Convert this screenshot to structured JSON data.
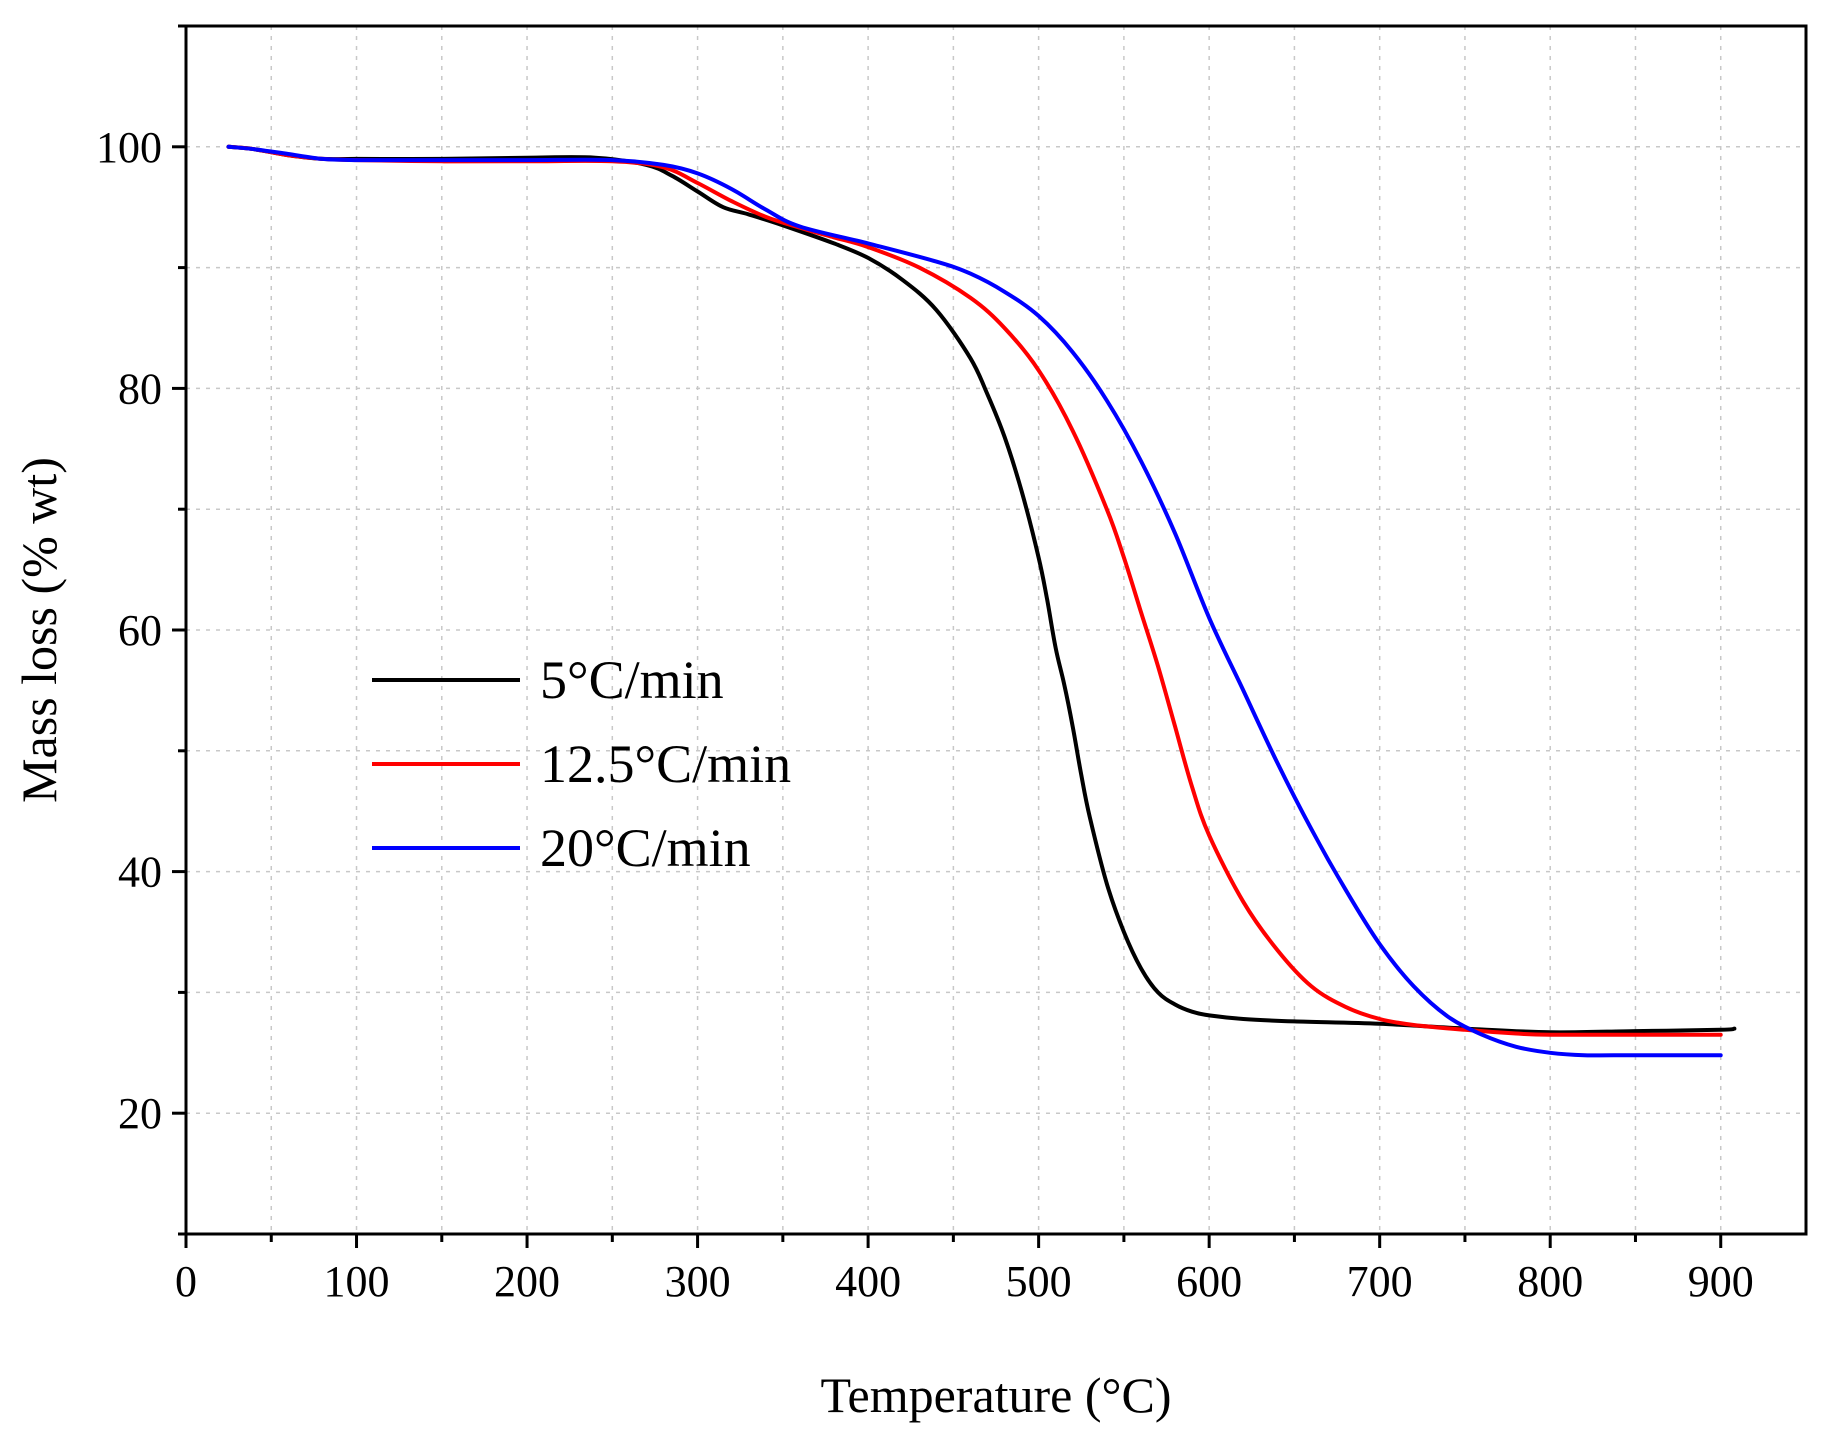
{
  "chart_data": {
    "type": "line",
    "title": "",
    "xlabel": "Temperature (°C)",
    "ylabel": "Mass loss (% wt)",
    "xlim": [
      0,
      950
    ],
    "ylim": [
      10,
      110
    ],
    "xticks": [
      0,
      100,
      200,
      300,
      400,
      500,
      600,
      700,
      800,
      900
    ],
    "xtick_labels": [
      "0",
      "100",
      "200",
      "300",
      "400",
      "500",
      "600",
      "700",
      "800",
      "900"
    ],
    "yticks": [
      20,
      40,
      60,
      80,
      100
    ],
    "ytick_labels": [
      "20",
      "40",
      "60",
      "80",
      "100"
    ],
    "grid": true,
    "legend_position": "center-left",
    "series": [
      {
        "name": "5°C/min",
        "color": "#000000",
        "x": [
          25,
          40,
          60,
          80,
          100,
          150,
          200,
          240,
          270,
          285,
          300,
          315,
          330,
          350,
          380,
          400,
          420,
          440,
          460,
          470,
          480,
          490,
          500,
          505,
          510,
          515,
          520,
          525,
          530,
          540,
          550,
          560,
          570,
          580,
          590,
          600,
          620,
          650,
          700,
          750,
          800,
          850,
          900,
          908
        ],
        "values": [
          100,
          99.8,
          99.3,
          99.0,
          99.0,
          99.0,
          99.1,
          99.1,
          98.5,
          97.6,
          96.3,
          95.0,
          94.4,
          93.5,
          92.0,
          90.8,
          89.0,
          86.5,
          82.5,
          79.5,
          76.0,
          71.5,
          66.0,
          62.5,
          58.5,
          55.5,
          52.0,
          48.0,
          44.5,
          39.0,
          35.0,
          32.0,
          30.0,
          29.0,
          28.4,
          28.1,
          27.8,
          27.6,
          27.4,
          27.0,
          26.7,
          26.8,
          26.9,
          27.0
        ]
      },
      {
        "name": "12.5°C/min",
        "color": "#ff0000",
        "x": [
          25,
          40,
          60,
          80,
          100,
          150,
          200,
          250,
          280,
          300,
          320,
          340,
          360,
          380,
          400,
          430,
          460,
          480,
          500,
          520,
          540,
          550,
          560,
          570,
          580,
          590,
          600,
          620,
          640,
          660,
          680,
          700,
          720,
          750,
          780,
          800,
          850,
          900
        ],
        "values": [
          100,
          99.8,
          99.3,
          99.0,
          98.9,
          98.8,
          98.8,
          98.8,
          98.3,
          97.0,
          95.5,
          94.2,
          93.3,
          92.5,
          91.7,
          90.0,
          87.5,
          85.0,
          81.5,
          76.5,
          70.0,
          66.0,
          61.5,
          57.0,
          52.0,
          47.0,
          43.0,
          37.5,
          33.5,
          30.5,
          28.8,
          27.8,
          27.3,
          26.9,
          26.6,
          26.5,
          26.5,
          26.5
        ]
      },
      {
        "name": "20°C/min",
        "color": "#0000ff",
        "x": [
          25,
          40,
          60,
          80,
          100,
          150,
          200,
          250,
          280,
          300,
          320,
          340,
          360,
          400,
          440,
          460,
          480,
          500,
          520,
          540,
          560,
          580,
          600,
          620,
          640,
          660,
          680,
          700,
          720,
          740,
          760,
          780,
          800,
          820,
          850,
          900
        ],
        "values": [
          100,
          99.8,
          99.4,
          99.0,
          98.9,
          98.9,
          98.9,
          98.9,
          98.5,
          97.8,
          96.5,
          94.8,
          93.4,
          92.0,
          90.5,
          89.5,
          88.0,
          86.0,
          83.0,
          79.0,
          74.0,
          68.0,
          61.0,
          55.0,
          49.0,
          43.5,
          38.5,
          34.0,
          30.5,
          28.0,
          26.5,
          25.5,
          25.0,
          24.8,
          24.8,
          24.8
        ]
      }
    ]
  }
}
